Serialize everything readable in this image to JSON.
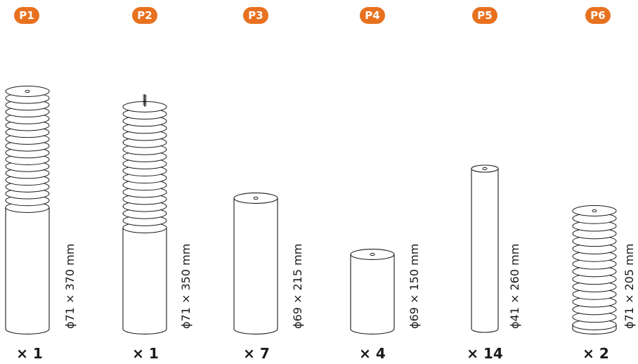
{
  "colors": {
    "badge": "#e8711f",
    "stroke": "#1a1a1a"
  },
  "parts": [
    {
      "id": "P1",
      "dimension": "ϕ71 × 370 mm",
      "quantity": "× 1",
      "style": "ridged-top",
      "has_screw": false
    },
    {
      "id": "P2",
      "dimension": "ϕ71 × 350 mm",
      "quantity": "× 1",
      "style": "ridged-top",
      "has_screw": true
    },
    {
      "id": "P3",
      "dimension": "ϕ69 × 215 mm",
      "quantity": "× 7",
      "style": "plain",
      "has_screw": false
    },
    {
      "id": "P4",
      "dimension": "ϕ69 × 150 mm",
      "quantity": "× 4",
      "style": "plain",
      "has_screw": false
    },
    {
      "id": "P5",
      "dimension": "ϕ41 × 260 mm",
      "quantity": "× 14",
      "style": "plain",
      "has_screw": false
    },
    {
      "id": "P6",
      "dimension": "ϕ71 × 205 mm",
      "quantity": "× 2",
      "style": "ridged-full",
      "has_screw": false
    }
  ]
}
